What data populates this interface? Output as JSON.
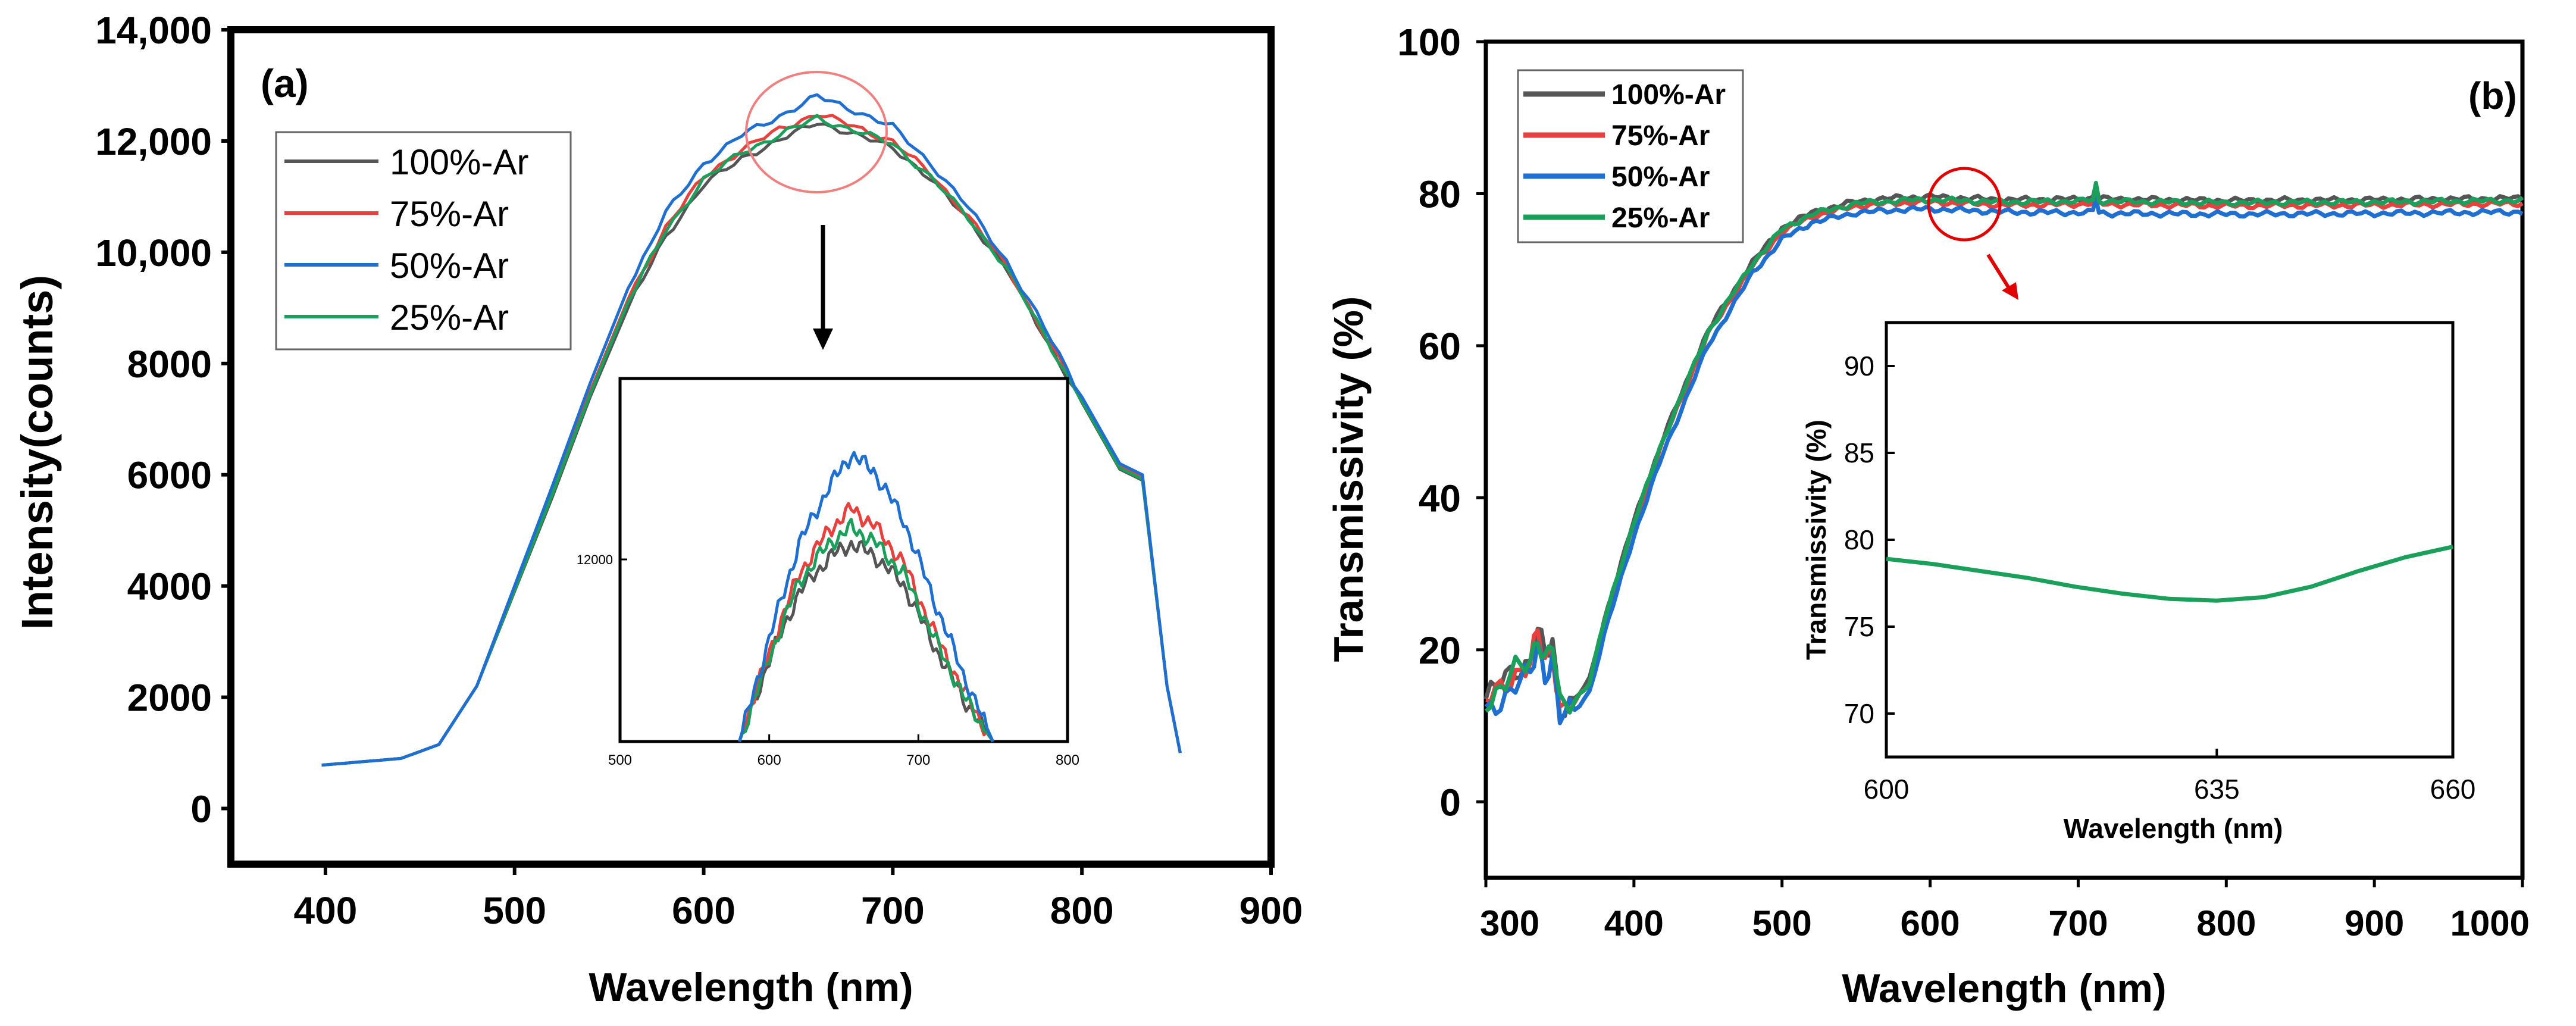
{
  "chart_data": [
    {
      "panel_label": "(a)",
      "type": "line",
      "title": "",
      "xlabel": "Wavelength (nm)",
      "ylabel": "Intensity(counts)",
      "xlim": [
        350,
        900
      ],
      "ylim": [
        -1000,
        14000
      ],
      "xticks": [
        400,
        500,
        600,
        700,
        800,
        900
      ],
      "yticks": [
        0,
        2000,
        4000,
        6000,
        8000,
        10000,
        12000,
        14000
      ],
      "ytick_labels": [
        "0",
        "2000",
        "4000",
        "6000",
        "8000",
        "10,000",
        "12,000",
        "14,000"
      ],
      "legend": "top-left",
      "series": [
        {
          "name": "100%-Ar",
          "color": "#555555",
          "x": [
            398,
            440,
            460,
            480,
            500,
            520,
            540,
            560,
            580,
            600,
            620,
            640,
            660,
            680,
            700,
            720,
            740,
            760,
            780,
            800,
            820,
            832,
            845,
            852
          ],
          "y": [
            780,
            900,
            1150,
            2200,
            3900,
            5600,
            7400,
            9000,
            10300,
            11200,
            11700,
            12000,
            12350,
            12100,
            11900,
            11300,
            10600,
            9700,
            8500,
            7300,
            6100,
            5900,
            2200,
            1000
          ]
        },
        {
          "name": "75%-Ar",
          "color": "#e8403c",
          "x": [
            398,
            440,
            460,
            480,
            500,
            520,
            540,
            560,
            580,
            600,
            620,
            640,
            660,
            680,
            700,
            720,
            740,
            760,
            780,
            800,
            820,
            832,
            845,
            852
          ],
          "y": [
            780,
            900,
            1150,
            2200,
            3950,
            5700,
            7500,
            9150,
            10450,
            11350,
            11850,
            12200,
            12500,
            12250,
            12000,
            11400,
            10650,
            9750,
            8550,
            7350,
            6150,
            5950,
            2200,
            1000
          ]
        },
        {
          "name": "50%-Ar",
          "color": "#1f6fd1",
          "x": [
            398,
            440,
            460,
            480,
            500,
            520,
            540,
            560,
            580,
            600,
            620,
            640,
            660,
            680,
            700,
            720,
            740,
            760,
            780,
            800,
            820,
            832,
            845,
            852
          ],
          "y": [
            780,
            900,
            1150,
            2200,
            4000,
            5800,
            7650,
            9350,
            10700,
            11600,
            12100,
            12450,
            12800,
            12550,
            12250,
            11600,
            10800,
            9850,
            8650,
            7400,
            6200,
            6000,
            2200,
            1000
          ]
        },
        {
          "name": "25%-Ar",
          "color": "#1aa05a",
          "x": [
            398,
            440,
            460,
            480,
            500,
            520,
            540,
            560,
            580,
            600,
            620,
            640,
            660,
            680,
            700,
            720,
            740,
            760,
            780,
            800,
            820,
            832,
            845,
            852
          ],
          "y": [
            780,
            900,
            1150,
            2200,
            3920,
            5650,
            7450,
            9100,
            10400,
            11300,
            11800,
            12100,
            12420,
            12180,
            11950,
            11350,
            10620,
            9720,
            8520,
            7320,
            6120,
            5920,
            2200,
            1000
          ]
        }
      ],
      "inset": {
        "xlim": [
          500,
          800
        ],
        "xticks": [
          500,
          600,
          700,
          800
        ],
        "ytick": 12000,
        "ytick_label": "12000",
        "yrange": [
          11700,
          12900
        ],
        "x": [
          580,
          600,
          620,
          640,
          655,
          670,
          690,
          710,
          730,
          750
        ],
        "series": [
          {
            "name": "100%-Ar",
            "y": [
              11700,
              12000,
              12250,
              12380,
              12430,
              12390,
              12280,
              12060,
              11860,
              11700
            ]
          },
          {
            "name": "75%-Ar",
            "y": [
              11700,
              12030,
              12320,
              12480,
              12560,
              12500,
              12360,
              12110,
              11890,
              11700
            ]
          },
          {
            "name": "50%-Ar",
            "y": [
              11700,
              12080,
              12430,
              12640,
              12760,
              12700,
              12520,
              12230,
              11950,
              11700
            ]
          },
          {
            "name": "25%-Ar",
            "y": [
              11700,
              12010,
              12290,
              12430,
              12490,
              12440,
              12320,
              12090,
              11870,
              11700
            ]
          }
        ]
      }
    },
    {
      "panel_label": "(b)",
      "type": "line",
      "title": "",
      "xlabel": "Wavelength (nm)",
      "ylabel": "Transmissivity  (%)",
      "xlim": [
        300,
        1000
      ],
      "ylim": [
        -10,
        100
      ],
      "xticks": [
        300,
        400,
        500,
        600,
        700,
        800,
        900,
        1000
      ],
      "yticks": [
        0,
        20,
        40,
        60,
        80,
        100
      ],
      "legend": "top-left",
      "series": [
        {
          "name": "100%-Ar",
          "color": "#555555",
          "x": [
            300,
            310,
            320,
            330,
            335,
            340,
            345,
            350,
            360,
            370,
            380,
            400,
            420,
            450,
            480,
            500,
            520,
            550,
            580,
            600,
            650,
            700,
            710,
            712,
            714,
            720,
            800,
            900,
            1000
          ],
          "y": [
            13.5,
            15.5,
            17.5,
            18.5,
            22.5,
            19.0,
            21.0,
            12.5,
            13.5,
            16.0,
            24.0,
            37.0,
            48.0,
            62.0,
            71.0,
            75.5,
            77.5,
            79.0,
            79.5,
            79.6,
            79.2,
            79.3,
            79.5,
            81.5,
            79.4,
            79.3,
            79.1,
            79.2,
            79.4
          ]
        },
        {
          "name": "75%-Ar",
          "color": "#e8403c",
          "x": [
            300,
            310,
            320,
            330,
            335,
            340,
            345,
            350,
            360,
            370,
            380,
            400,
            420,
            450,
            480,
            500,
            520,
            550,
            580,
            600,
            650,
            700,
            710,
            712,
            714,
            720,
            800,
            900,
            1000
          ],
          "y": [
            13.0,
            15.0,
            17.0,
            18.0,
            22.0,
            18.5,
            20.5,
            12.0,
            13.0,
            15.5,
            23.5,
            36.5,
            47.5,
            61.5,
            70.5,
            75.0,
            77.0,
            78.4,
            78.8,
            78.9,
            78.5,
            78.6,
            78.8,
            80.8,
            78.7,
            78.6,
            78.4,
            78.5,
            78.7
          ]
        },
        {
          "name": "50%-Ar",
          "color": "#1f6fd1",
          "x": [
            300,
            310,
            320,
            330,
            335,
            340,
            345,
            350,
            360,
            370,
            380,
            400,
            420,
            450,
            480,
            500,
            520,
            550,
            580,
            600,
            650,
            700,
            710,
            712,
            714,
            720,
            800,
            900,
            1000
          ],
          "y": [
            11.5,
            13.5,
            15.5,
            16.5,
            20.5,
            17.0,
            19.0,
            11.0,
            12.0,
            14.5,
            22.0,
            35.0,
            46.0,
            60.0,
            69.5,
            74.0,
            76.2,
            77.5,
            77.9,
            78.0,
            77.6,
            77.5,
            77.6,
            79.5,
            77.5,
            77.4,
            77.3,
            77.4,
            77.6
          ]
        },
        {
          "name": "25%-Ar",
          "color": "#1aa05a",
          "x": [
            300,
            310,
            320,
            330,
            335,
            340,
            345,
            350,
            360,
            370,
            380,
            400,
            420,
            450,
            480,
            500,
            520,
            550,
            580,
            600,
            650,
            700,
            710,
            712,
            714,
            720,
            800,
            900,
            1000
          ],
          "y": [
            13.2,
            15.2,
            17.2,
            18.2,
            22.2,
            18.8,
            20.8,
            12.3,
            13.3,
            15.8,
            23.8,
            36.8,
            47.8,
            61.8,
            70.8,
            75.3,
            77.3,
            78.7,
            79.1,
            79.2,
            78.9,
            79.0,
            79.2,
            81.2,
            79.1,
            79.0,
            78.8,
            78.9,
            79.1
          ]
        }
      ],
      "inset": {
        "xlabel": "Wavelength (nm)",
        "ylabel": "Transmissivity (%)",
        "xlim": [
          600,
          660
        ],
        "ylim": [
          67.5,
          92.5
        ],
        "xticks": [
          600,
          635,
          660
        ],
        "yticks": [
          70,
          75,
          80,
          85,
          90
        ],
        "series": [
          {
            "name": "25%-Ar",
            "color": "#1aa05a",
            "x": [
              600,
              605,
              610,
              615,
              620,
              625,
              630,
              635,
              640,
              645,
              650,
              655,
              660
            ],
            "y": [
              78.9,
              78.6,
              78.2,
              77.8,
              77.3,
              76.9,
              76.6,
              76.5,
              76.7,
              77.3,
              78.2,
              79.0,
              79.6
            ]
          }
        ]
      }
    }
  ]
}
